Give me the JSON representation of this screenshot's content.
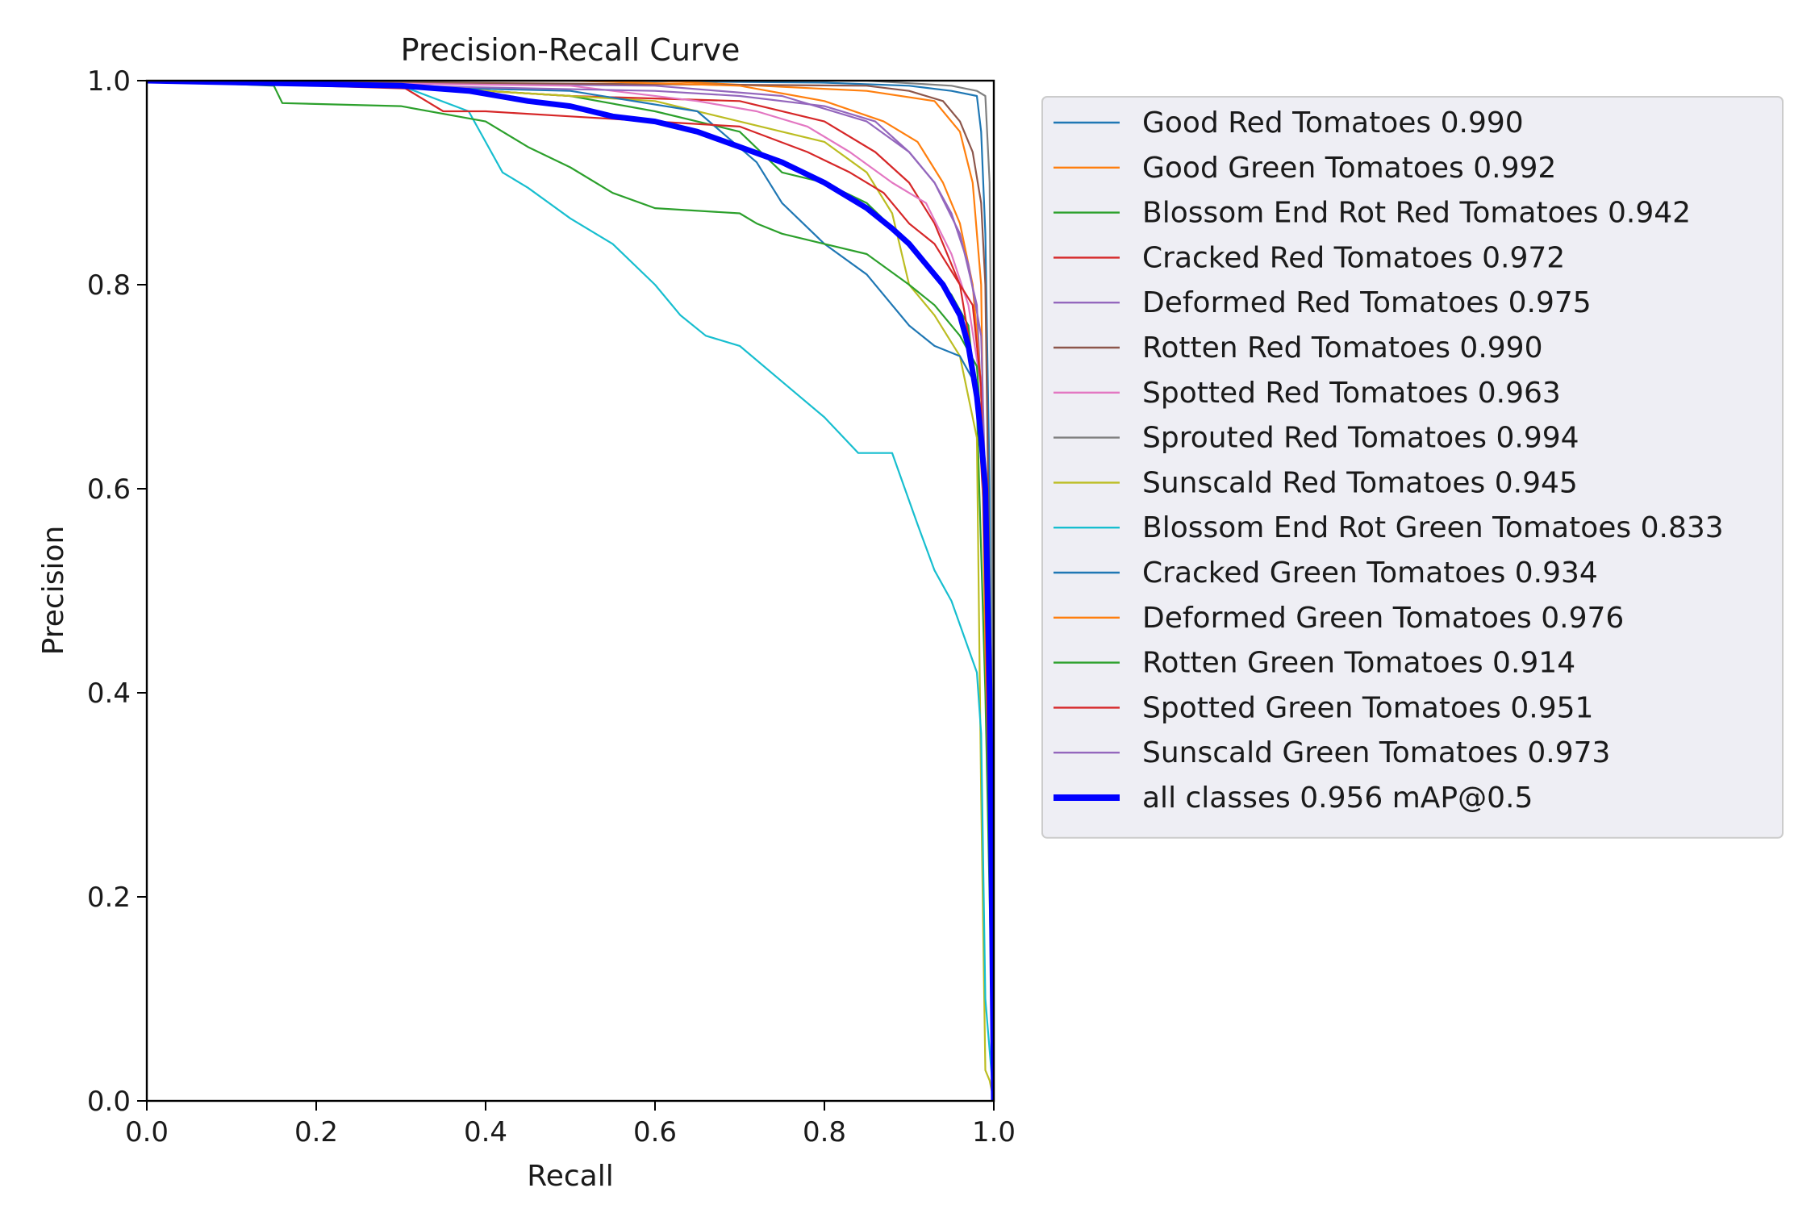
{
  "chart_data": {
    "type": "line",
    "title": "Precision-Recall Curve",
    "xlabel": "Recall",
    "ylabel": "Precision",
    "xlim": [
      0,
      1
    ],
    "ylim": [
      0,
      1
    ],
    "xticks": [
      "0.0",
      "0.2",
      "0.4",
      "0.6",
      "0.8",
      "1.0"
    ],
    "yticks": [
      "0.0",
      "0.2",
      "0.4",
      "0.6",
      "0.8",
      "1.0"
    ],
    "grid": false,
    "legend_position": "outside-right-top",
    "series": [
      {
        "name": "Good Red Tomatoes 0.990",
        "color": "#1f77b4",
        "width": 2.2,
        "points": [
          [
            0,
            1
          ],
          [
            0.5,
            1
          ],
          [
            0.8,
            0.998
          ],
          [
            0.9,
            0.995
          ],
          [
            0.95,
            0.99
          ],
          [
            0.98,
            0.985
          ],
          [
            0.985,
            0.95
          ],
          [
            0.99,
            0.85
          ],
          [
            0.995,
            0.6
          ],
          [
            1,
            0
          ]
        ]
      },
      {
        "name": "Good Green Tomatoes 0.992",
        "color": "#ff7f0e",
        "width": 2.2,
        "points": [
          [
            0,
            1
          ],
          [
            0.6,
            1
          ],
          [
            0.85,
            0.99
          ],
          [
            0.93,
            0.98
          ],
          [
            0.96,
            0.95
          ],
          [
            0.975,
            0.9
          ],
          [
            0.985,
            0.8
          ],
          [
            0.99,
            0.5
          ],
          [
            1,
            0
          ]
        ]
      },
      {
        "name": "Blossom End Rot Red Tomatoes 0.942",
        "color": "#2ca02c",
        "width": 2.2,
        "points": [
          [
            0,
            1
          ],
          [
            0.3,
            0.995
          ],
          [
            0.5,
            0.985
          ],
          [
            0.6,
            0.97
          ],
          [
            0.7,
            0.95
          ],
          [
            0.75,
            0.91
          ],
          [
            0.8,
            0.9
          ],
          [
            0.85,
            0.88
          ],
          [
            0.9,
            0.84
          ],
          [
            0.95,
            0.79
          ],
          [
            0.97,
            0.76
          ],
          [
            0.98,
            0.68
          ],
          [
            0.99,
            0.4
          ],
          [
            1,
            0
          ]
        ]
      },
      {
        "name": "Cracked Red Tomatoes 0.972",
        "color": "#d62728",
        "width": 2.2,
        "points": [
          [
            0,
            1
          ],
          [
            0.2,
            0.995
          ],
          [
            0.4,
            0.99
          ],
          [
            0.5,
            0.985
          ],
          [
            0.7,
            0.98
          ],
          [
            0.8,
            0.96
          ],
          [
            0.86,
            0.93
          ],
          [
            0.9,
            0.9
          ],
          [
            0.93,
            0.86
          ],
          [
            0.96,
            0.8
          ],
          [
            0.98,
            0.7
          ],
          [
            0.99,
            0.55
          ],
          [
            1,
            0
          ]
        ]
      },
      {
        "name": "Deformed Red Tomatoes 0.975",
        "color": "#9467bd",
        "width": 2.2,
        "points": [
          [
            0,
            1
          ],
          [
            0.6,
            0.995
          ],
          [
            0.75,
            0.985
          ],
          [
            0.85,
            0.96
          ],
          [
            0.9,
            0.93
          ],
          [
            0.93,
            0.9
          ],
          [
            0.96,
            0.85
          ],
          [
            0.98,
            0.78
          ],
          [
            0.99,
            0.6
          ],
          [
            1,
            0
          ]
        ]
      },
      {
        "name": "Rotten Red Tomatoes 0.990",
        "color": "#8c564b",
        "width": 2.2,
        "points": [
          [
            0,
            1
          ],
          [
            0.85,
            0.995
          ],
          [
            0.9,
            0.99
          ],
          [
            0.94,
            0.98
          ],
          [
            0.96,
            0.96
          ],
          [
            0.975,
            0.93
          ],
          [
            0.985,
            0.88
          ],
          [
            0.99,
            0.8
          ],
          [
            0.995,
            0.5
          ],
          [
            1,
            0
          ]
        ]
      },
      {
        "name": "Spotted Red Tomatoes 0.963",
        "color": "#e377c2",
        "width": 2.2,
        "points": [
          [
            0,
            1
          ],
          [
            0.5,
            0.995
          ],
          [
            0.65,
            0.98
          ],
          [
            0.72,
            0.97
          ],
          [
            0.78,
            0.955
          ],
          [
            0.83,
            0.93
          ],
          [
            0.88,
            0.9
          ],
          [
            0.92,
            0.88
          ],
          [
            0.95,
            0.83
          ],
          [
            0.97,
            0.78
          ],
          [
            0.985,
            0.7
          ],
          [
            0.99,
            0.5
          ],
          [
            1,
            0
          ]
        ]
      },
      {
        "name": "Sprouted Red Tomatoes 0.994",
        "color": "#7f7f7f",
        "width": 2.2,
        "points": [
          [
            0,
            1
          ],
          [
            0.85,
            1
          ],
          [
            0.95,
            0.995
          ],
          [
            0.98,
            0.99
          ],
          [
            0.99,
            0.985
          ],
          [
            0.995,
            0.9
          ],
          [
            0.998,
            0.6
          ],
          [
            1,
            0
          ]
        ]
      },
      {
        "name": "Sunscald Red Tomatoes 0.945",
        "color": "#bcbd22",
        "width": 2.2,
        "points": [
          [
            0,
            1
          ],
          [
            0.3,
            0.995
          ],
          [
            0.6,
            0.98
          ],
          [
            0.75,
            0.95
          ],
          [
            0.8,
            0.94
          ],
          [
            0.85,
            0.91
          ],
          [
            0.88,
            0.87
          ],
          [
            0.9,
            0.8
          ],
          [
            0.93,
            0.77
          ],
          [
            0.96,
            0.73
          ],
          [
            0.98,
            0.65
          ],
          [
            0.985,
            0.3
          ],
          [
            0.99,
            0.03
          ],
          [
            0.995,
            0.02
          ],
          [
            1,
            0
          ]
        ]
      },
      {
        "name": "Blossom End Rot Green Tomatoes 0.833",
        "color": "#17becf",
        "width": 2.2,
        "points": [
          [
            0,
            1
          ],
          [
            0.3,
            0.995
          ],
          [
            0.38,
            0.97
          ],
          [
            0.4,
            0.94
          ],
          [
            0.42,
            0.91
          ],
          [
            0.45,
            0.895
          ],
          [
            0.5,
            0.865
          ],
          [
            0.55,
            0.84
          ],
          [
            0.6,
            0.8
          ],
          [
            0.63,
            0.77
          ],
          [
            0.66,
            0.75
          ],
          [
            0.7,
            0.74
          ],
          [
            0.75,
            0.705
          ],
          [
            0.8,
            0.67
          ],
          [
            0.84,
            0.635
          ],
          [
            0.88,
            0.635
          ],
          [
            0.91,
            0.565
          ],
          [
            0.93,
            0.52
          ],
          [
            0.95,
            0.49
          ],
          [
            0.98,
            0.42
          ],
          [
            0.985,
            0.36
          ],
          [
            0.99,
            0.1
          ],
          [
            1,
            0
          ]
        ]
      },
      {
        "name": "Cracked Green Tomatoes 0.934",
        "color": "#1f77b4",
        "width": 2.2,
        "points": [
          [
            0,
            1
          ],
          [
            0.5,
            0.99
          ],
          [
            0.65,
            0.97
          ],
          [
            0.72,
            0.92
          ],
          [
            0.75,
            0.88
          ],
          [
            0.8,
            0.84
          ],
          [
            0.85,
            0.81
          ],
          [
            0.88,
            0.78
          ],
          [
            0.9,
            0.76
          ],
          [
            0.93,
            0.74
          ],
          [
            0.96,
            0.73
          ],
          [
            0.98,
            0.7
          ],
          [
            0.99,
            0.6
          ],
          [
            1,
            0
          ]
        ]
      },
      {
        "name": "Deformed Green Tomatoes 0.976",
        "color": "#ff7f0e",
        "width": 2.2,
        "points": [
          [
            0,
            1
          ],
          [
            0.5,
            1
          ],
          [
            0.7,
            0.995
          ],
          [
            0.8,
            0.98
          ],
          [
            0.87,
            0.96
          ],
          [
            0.91,
            0.94
          ],
          [
            0.94,
            0.9
          ],
          [
            0.96,
            0.86
          ],
          [
            0.975,
            0.8
          ],
          [
            0.985,
            0.7
          ],
          [
            0.99,
            0.44
          ],
          [
            0.995,
            0.28
          ],
          [
            1,
            0
          ]
        ]
      },
      {
        "name": "Rotten Green Tomatoes 0.914",
        "color": "#2ca02c",
        "width": 2.2,
        "points": [
          [
            0,
            1
          ],
          [
            0.15,
            0.995
          ],
          [
            0.16,
            0.978
          ],
          [
            0.3,
            0.975
          ],
          [
            0.4,
            0.96
          ],
          [
            0.45,
            0.935
          ],
          [
            0.5,
            0.915
          ],
          [
            0.55,
            0.89
          ],
          [
            0.6,
            0.875
          ],
          [
            0.7,
            0.87
          ],
          [
            0.72,
            0.86
          ],
          [
            0.75,
            0.85
          ],
          [
            0.8,
            0.84
          ],
          [
            0.85,
            0.83
          ],
          [
            0.9,
            0.8
          ],
          [
            0.93,
            0.78
          ],
          [
            0.96,
            0.75
          ],
          [
            0.98,
            0.72
          ],
          [
            0.99,
            0.6
          ],
          [
            1,
            0
          ]
        ]
      },
      {
        "name": "Spotted Green Tomatoes 0.951",
        "color": "#d62728",
        "width": 2.2,
        "points": [
          [
            0,
            1
          ],
          [
            0.3,
            0.995
          ],
          [
            0.35,
            0.97
          ],
          [
            0.4,
            0.97
          ],
          [
            0.5,
            0.965
          ],
          [
            0.6,
            0.96
          ],
          [
            0.7,
            0.955
          ],
          [
            0.78,
            0.93
          ],
          [
            0.83,
            0.91
          ],
          [
            0.87,
            0.89
          ],
          [
            0.9,
            0.86
          ],
          [
            0.93,
            0.84
          ],
          [
            0.96,
            0.8
          ],
          [
            0.975,
            0.78
          ],
          [
            0.985,
            0.7
          ],
          [
            0.99,
            0.5
          ],
          [
            1,
            0
          ]
        ]
      },
      {
        "name": "Sunscald Green Tomatoes 0.973",
        "color": "#9467bd",
        "width": 2.2,
        "points": [
          [
            0,
            1
          ],
          [
            0.6,
            0.99
          ],
          [
            0.7,
            0.985
          ],
          [
            0.8,
            0.975
          ],
          [
            0.86,
            0.96
          ],
          [
            0.9,
            0.93
          ],
          [
            0.93,
            0.9
          ],
          [
            0.95,
            0.87
          ],
          [
            0.97,
            0.82
          ],
          [
            0.985,
            0.75
          ],
          [
            0.99,
            0.6
          ],
          [
            1,
            0
          ]
        ]
      },
      {
        "name": "all classes 0.956 mAP@0.5",
        "color": "#0000ff",
        "width": 7,
        "points": [
          [
            0,
            1
          ],
          [
            0.3,
            0.995
          ],
          [
            0.38,
            0.99
          ],
          [
            0.45,
            0.98
          ],
          [
            0.5,
            0.975
          ],
          [
            0.55,
            0.965
          ],
          [
            0.6,
            0.96
          ],
          [
            0.65,
            0.95
          ],
          [
            0.7,
            0.935
          ],
          [
            0.75,
            0.92
          ],
          [
            0.8,
            0.9
          ],
          [
            0.85,
            0.875
          ],
          [
            0.88,
            0.855
          ],
          [
            0.9,
            0.84
          ],
          [
            0.92,
            0.82
          ],
          [
            0.94,
            0.8
          ],
          [
            0.96,
            0.77
          ],
          [
            0.97,
            0.74
          ],
          [
            0.98,
            0.69
          ],
          [
            0.985,
            0.65
          ],
          [
            0.99,
            0.6
          ],
          [
            0.995,
            0.4
          ],
          [
            1,
            0
          ]
        ]
      }
    ]
  }
}
